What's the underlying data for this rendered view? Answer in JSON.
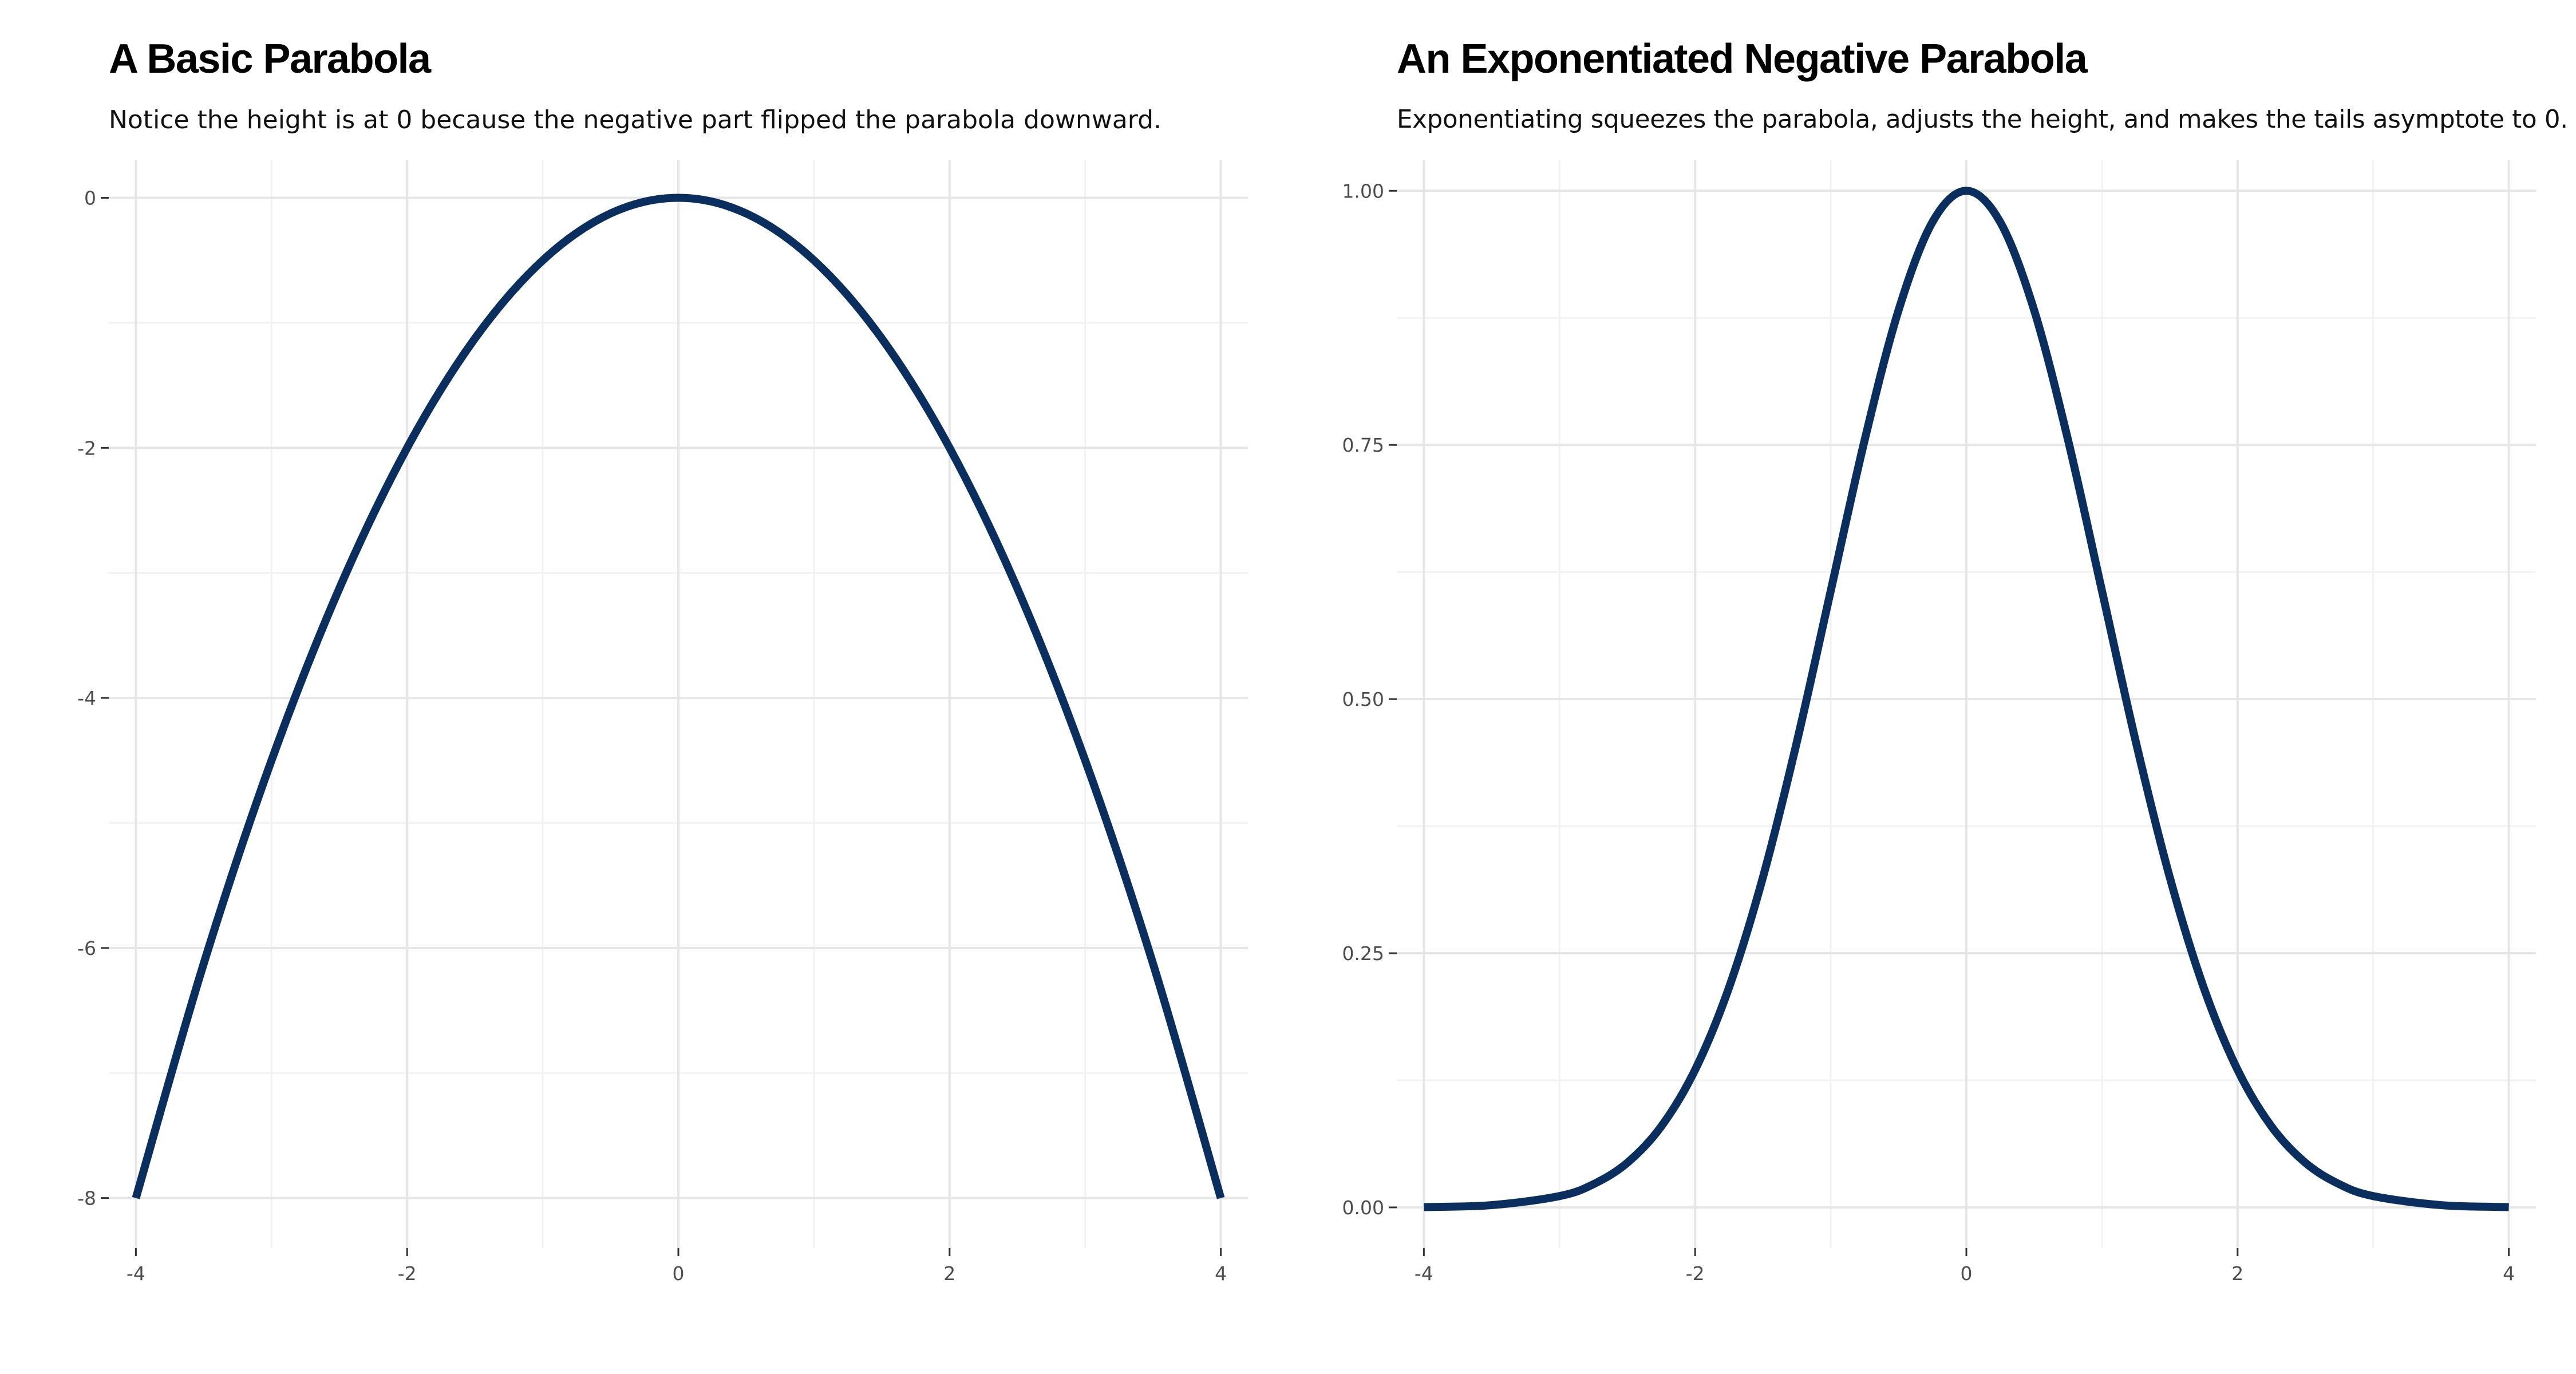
{
  "chart_data": [
    {
      "type": "line",
      "title": "A Basic Parabola",
      "subtitle": "Notice the height is at 0 because the negative part flipped the parabola downward.",
      "xlabel": "",
      "ylabel": "",
      "xlim": [
        -4.2,
        4.2
      ],
      "ylim": [
        -8.4,
        0.3
      ],
      "x_ticks": [
        -4,
        -2,
        0,
        2,
        4
      ],
      "x_tick_labels": [
        "-4",
        "-2",
        "0",
        "2",
        "4"
      ],
      "y_ticks": [
        -8,
        -6,
        -4,
        -2,
        0
      ],
      "y_tick_labels": [
        "-8",
        "-6",
        "-4",
        "-2",
        "0"
      ],
      "grid": true,
      "line_color": "#0a2f5f",
      "series": [
        {
          "x": [
            -4,
            -3.5,
            -3,
            -2.5,
            -2,
            -1.5,
            -1,
            -0.5,
            0,
            0.5,
            1,
            1.5,
            2,
            2.5,
            3,
            3.5,
            4
          ],
          "y": [
            -8,
            -6.125,
            -4.5,
            -3.125,
            -2,
            -1.125,
            -0.5,
            -0.125,
            0,
            -0.125,
            -0.5,
            -1.125,
            -2,
            -3.125,
            -4.5,
            -6.125,
            -8
          ]
        }
      ]
    },
    {
      "type": "line",
      "title": "An Exponentiated Negative Parabola",
      "subtitle": "Exponentiating squeezes the parabola, adjusts the height, and makes the tails asymptote to 0.",
      "xlabel": "",
      "ylabel": "",
      "xlim": [
        -4.2,
        4.2
      ],
      "ylim": [
        -0.04,
        1.03
      ],
      "x_ticks": [
        -4,
        -2,
        0,
        2,
        4
      ],
      "x_tick_labels": [
        "-4",
        "-2",
        "0",
        "2",
        "4"
      ],
      "y_ticks": [
        0,
        0.25,
        0.5,
        0.75,
        1
      ],
      "y_tick_labels": [
        "0.00",
        "0.25",
        "0.50",
        "0.75",
        "1.00"
      ],
      "grid": true,
      "line_color": "#0a2f5f",
      "series": [
        {
          "x": [
            -4,
            -3.5,
            -3,
            -2.75,
            -2.5,
            -2.25,
            -2,
            -1.75,
            -1.5,
            -1.25,
            -1,
            -0.75,
            -0.5,
            -0.25,
            0,
            0.25,
            0.5,
            0.75,
            1,
            1.25,
            1.5,
            1.75,
            2,
            2.25,
            2.5,
            2.75,
            3,
            3.5,
            4
          ],
          "y": [
            0.0003,
            0.0022,
            0.0111,
            0.0228,
            0.0439,
            0.0796,
            0.1353,
            0.2163,
            0.3247,
            0.4578,
            0.6065,
            0.7548,
            0.8825,
            0.9692,
            1,
            0.9692,
            0.8825,
            0.7548,
            0.6065,
            0.4578,
            0.3247,
            0.2163,
            0.1353,
            0.0796,
            0.0439,
            0.0228,
            0.0111,
            0.0022,
            0.0003
          ]
        }
      ]
    }
  ]
}
